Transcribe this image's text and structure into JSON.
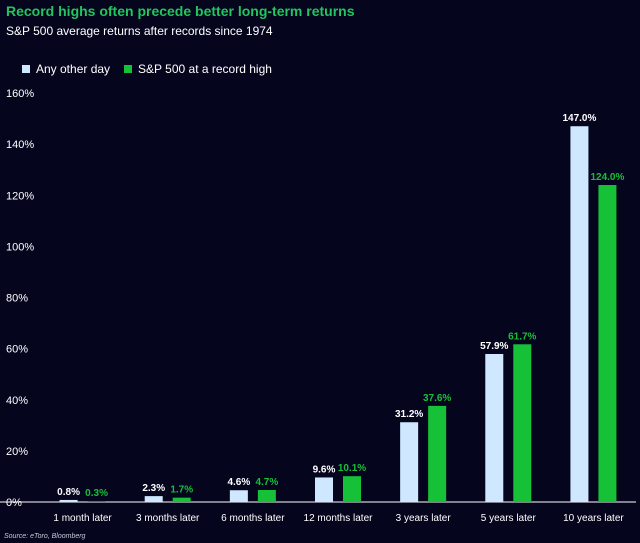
{
  "title": "Record highs often precede better long-term returns",
  "subtitle": "S&P 500 average returns after records since 1974",
  "source": "Source: eToro, Bloomberg",
  "colors": {
    "any_day": "#cfe8ff",
    "record_high": "#16c137",
    "background": "#05061e"
  },
  "chart_data": {
    "type": "bar",
    "title": "Record highs often precede better long-term returns",
    "subtitle": "S&P 500 average returns after records since 1974",
    "categories": [
      "1 month later",
      "3 months later",
      "6 months later",
      "12 months later",
      "3 years later",
      "5 years later",
      "10 years later"
    ],
    "series": [
      {
        "name": "Any other day",
        "values": [
          0.8,
          2.3,
          4.6,
          9.6,
          31.2,
          57.9,
          147.0
        ],
        "labels": [
          "0.8%",
          "2.3%",
          "4.6%",
          "9.6%",
          "31.2%",
          "57.9%",
          "147.0%"
        ]
      },
      {
        "name": "S&P 500 at a record high",
        "values": [
          0.3,
          1.7,
          4.7,
          10.1,
          37.6,
          61.7,
          124.0
        ],
        "labels": [
          "0.3%",
          "1.7%",
          "4.7%",
          "10.1%",
          "37.6%",
          "61.7%",
          "124.0%"
        ]
      }
    ],
    "ylim": [
      0,
      160
    ],
    "yticks": [
      0,
      20,
      40,
      60,
      80,
      100,
      120,
      140,
      160
    ],
    "ytick_labels": [
      "0%",
      "20%",
      "40%",
      "60%",
      "80%",
      "100%",
      "120%",
      "140%",
      "160%"
    ],
    "xlabel": "",
    "ylabel": "",
    "grid": false,
    "legend_position": "top-left"
  }
}
